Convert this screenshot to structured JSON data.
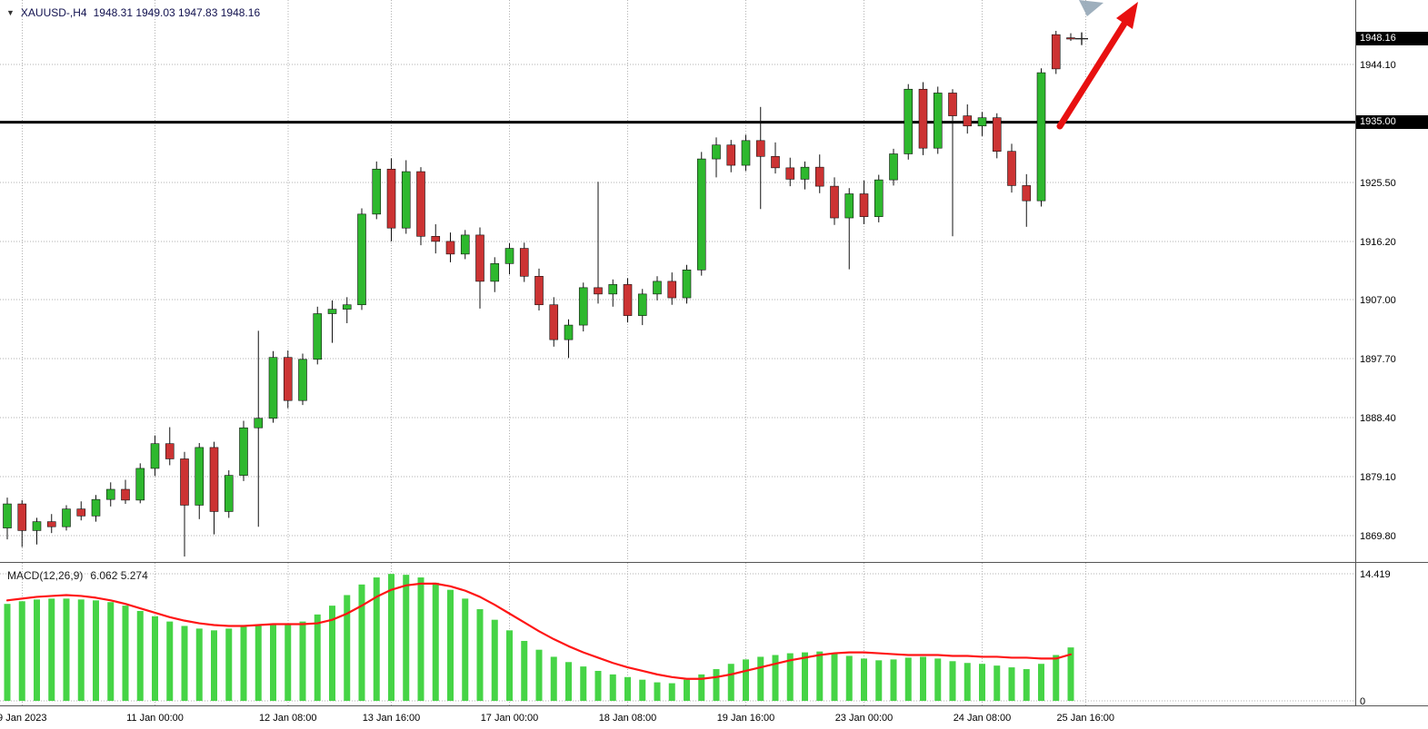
{
  "window": {
    "symbol_period": "XAUUSD-,H4",
    "ohlc_text": "1948.31 1949.03 1947.83 1948.16"
  },
  "chart_data": {
    "type": "candlestick_with_macd",
    "title": "XAUUSD-,H4",
    "symbol": "XAUUSD-",
    "timeframe": "H4",
    "current_ohlc": {
      "open": 1948.31,
      "high": 1949.03,
      "low": 1947.83,
      "close": 1948.16
    },
    "price_axis": {
      "ticks": [
        1944.1,
        1935.0,
        1925.5,
        1916.2,
        1907.0,
        1897.7,
        1888.4,
        1879.1,
        1869.8
      ],
      "callout_current": "1948.16",
      "callout_level": "1935.00"
    },
    "horizontal_line": 1935.0,
    "time_axis": {
      "labels": [
        {
          "text": "9 Jan 2023",
          "index": 2
        },
        {
          "text": "11 Jan 00:00",
          "index": 11
        },
        {
          "text": "12 Jan 08:00",
          "index": 20
        },
        {
          "text": "13 Jan 16:00",
          "index": 27
        },
        {
          "text": "17 Jan 00:00",
          "index": 35
        },
        {
          "text": "18 Jan 08:00",
          "index": 43
        },
        {
          "text": "19 Jan 16:00",
          "index": 51
        },
        {
          "text": "23 Jan 00:00",
          "index": 59
        },
        {
          "text": "24 Jan 08:00",
          "index": 67
        },
        {
          "text": "25 Jan 16:00",
          "index": 74
        }
      ]
    },
    "candles": [
      [
        1871.0,
        1875.8,
        1869.2,
        1874.8
      ],
      [
        1874.8,
        1875.4,
        1868.0,
        1870.6
      ],
      [
        1870.6,
        1872.6,
        1868.4,
        1872.0
      ],
      [
        1872.0,
        1873.2,
        1870.2,
        1871.2
      ],
      [
        1871.2,
        1874.6,
        1870.6,
        1874.0
      ],
      [
        1874.0,
        1875.2,
        1872.2,
        1872.9
      ],
      [
        1872.9,
        1876.2,
        1872.0,
        1875.5
      ],
      [
        1875.5,
        1878.2,
        1874.4,
        1877.1
      ],
      [
        1877.1,
        1878.6,
        1874.8,
        1875.4
      ],
      [
        1875.4,
        1881.2,
        1874.9,
        1880.4
      ],
      [
        1880.4,
        1885.6,
        1879.2,
        1884.3
      ],
      [
        1884.3,
        1886.9,
        1880.9,
        1881.9
      ],
      [
        1881.9,
        1883.0,
        1866.5,
        1874.6
      ],
      [
        1874.6,
        1884.4,
        1872.4,
        1883.7
      ],
      [
        1883.7,
        1884.6,
        1870.0,
        1873.6
      ],
      [
        1873.6,
        1880.1,
        1872.6,
        1879.3
      ],
      [
        1879.3,
        1887.9,
        1878.4,
        1886.8
      ],
      [
        1886.8,
        1902.1,
        1871.2,
        1888.3
      ],
      [
        1888.3,
        1898.9,
        1887.6,
        1897.9
      ],
      [
        1897.9,
        1899.0,
        1889.9,
        1891.1
      ],
      [
        1891.1,
        1898.5,
        1890.4,
        1897.6
      ],
      [
        1897.6,
        1905.9,
        1896.8,
        1904.8
      ],
      [
        1904.8,
        1906.9,
        1900.2,
        1905.5
      ],
      [
        1905.5,
        1907.4,
        1903.3,
        1906.2
      ],
      [
        1906.2,
        1921.4,
        1905.4,
        1920.5
      ],
      [
        1920.5,
        1928.8,
        1919.7,
        1927.6
      ],
      [
        1927.6,
        1929.3,
        1916.2,
        1918.3
      ],
      [
        1918.3,
        1929.0,
        1917.4,
        1927.2
      ],
      [
        1927.2,
        1927.9,
        1915.6,
        1917.0
      ],
      [
        1917.0,
        1918.9,
        1914.3,
        1916.2
      ],
      [
        1916.2,
        1917.6,
        1912.9,
        1914.2
      ],
      [
        1914.2,
        1918.0,
        1913.4,
        1917.2
      ],
      [
        1917.2,
        1918.4,
        1905.6,
        1909.9
      ],
      [
        1909.9,
        1913.7,
        1908.2,
        1912.7
      ],
      [
        1912.7,
        1915.9,
        1911.0,
        1915.1
      ],
      [
        1915.1,
        1916.0,
        1909.8,
        1910.7
      ],
      [
        1910.7,
        1911.9,
        1905.3,
        1906.2
      ],
      [
        1906.2,
        1907.4,
        1899.6,
        1900.7
      ],
      [
        1900.7,
        1903.9,
        1897.8,
        1903.0
      ],
      [
        1903.0,
        1909.7,
        1902.0,
        1908.9
      ],
      [
        1908.9,
        1925.6,
        1906.4,
        1907.9
      ],
      [
        1907.9,
        1910.2,
        1905.9,
        1909.4
      ],
      [
        1909.4,
        1910.4,
        1903.4,
        1904.5
      ],
      [
        1904.5,
        1908.7,
        1903.0,
        1907.9
      ],
      [
        1907.9,
        1910.7,
        1906.9,
        1909.9
      ],
      [
        1909.9,
        1911.3,
        1906.2,
        1907.3
      ],
      [
        1907.3,
        1912.5,
        1906.4,
        1911.7
      ],
      [
        1911.7,
        1930.3,
        1910.8,
        1929.2
      ],
      [
        1929.2,
        1932.6,
        1926.3,
        1931.4
      ],
      [
        1931.4,
        1932.2,
        1927.1,
        1928.2
      ],
      [
        1928.2,
        1933.0,
        1927.3,
        1932.1
      ],
      [
        1932.1,
        1937.4,
        1921.3,
        1929.6
      ],
      [
        1929.6,
        1931.8,
        1926.9,
        1927.8
      ],
      [
        1927.8,
        1929.4,
        1924.9,
        1926.0
      ],
      [
        1926.0,
        1928.8,
        1924.4,
        1927.9
      ],
      [
        1927.9,
        1929.9,
        1923.8,
        1924.9
      ],
      [
        1924.9,
        1926.3,
        1918.8,
        1919.9
      ],
      [
        1919.9,
        1924.6,
        1911.8,
        1923.7
      ],
      [
        1923.7,
        1925.8,
        1918.9,
        1920.1
      ],
      [
        1920.1,
        1926.7,
        1919.2,
        1925.9
      ],
      [
        1925.9,
        1930.8,
        1925.0,
        1930.0
      ],
      [
        1930.0,
        1941.0,
        1929.1,
        1940.2
      ],
      [
        1940.2,
        1941.3,
        1929.8,
        1930.9
      ],
      [
        1930.9,
        1940.6,
        1930.0,
        1939.6
      ],
      [
        1939.6,
        1940.2,
        1917.0,
        1936.0
      ],
      [
        1936.0,
        1937.8,
        1933.2,
        1934.4
      ],
      [
        1934.4,
        1936.6,
        1932.8,
        1935.7
      ],
      [
        1935.7,
        1936.4,
        1929.3,
        1930.4
      ],
      [
        1930.4,
        1931.6,
        1923.9,
        1925.0
      ],
      [
        1925.0,
        1926.8,
        1918.5,
        1922.6
      ],
      [
        1922.6,
        1943.5,
        1921.7,
        1942.8
      ],
      [
        1948.8,
        1949.4,
        1942.6,
        1943.4
      ],
      [
        1948.31,
        1949.03,
        1947.83,
        1948.16
      ]
    ],
    "macd": {
      "label": "MACD(12,26,9)",
      "values_text": "6.062 5.274",
      "macd_value": 6.062,
      "signal_value": 5.274,
      "axis_max": 14.419,
      "axis_max_label": "14.419",
      "axis_zero_label": "0",
      "histogram": [
        11.0,
        11.3,
        11.5,
        11.6,
        11.6,
        11.5,
        11.4,
        11.2,
        10.8,
        10.2,
        9.6,
        9.0,
        8.5,
        8.2,
        8.0,
        8.2,
        8.4,
        8.5,
        8.6,
        8.6,
        9.0,
        9.8,
        10.8,
        12.0,
        13.2,
        14.0,
        14.4,
        14.3,
        14.0,
        13.4,
        12.6,
        11.6,
        10.4,
        9.2,
        8.0,
        6.8,
        5.8,
        5.0,
        4.4,
        3.9,
        3.4,
        3.0,
        2.7,
        2.4,
        2.1,
        2.0,
        2.4,
        3.0,
        3.6,
        4.2,
        4.7,
        5.0,
        5.2,
        5.4,
        5.5,
        5.6,
        5.4,
        5.1,
        4.8,
        4.6,
        4.7,
        4.9,
        5.0,
        4.8,
        4.5,
        4.3,
        4.2,
        4.0,
        3.8,
        3.6,
        4.2,
        5.2,
        6.06
      ],
      "signal": [
        11.4,
        11.6,
        11.8,
        11.9,
        12.0,
        11.9,
        11.7,
        11.4,
        11.0,
        10.5,
        10.0,
        9.5,
        9.1,
        8.8,
        8.6,
        8.5,
        8.5,
        8.6,
        8.7,
        8.7,
        8.7,
        8.8,
        9.2,
        9.9,
        10.8,
        11.8,
        12.6,
        13.1,
        13.3,
        13.3,
        13.0,
        12.5,
        11.8,
        10.9,
        9.9,
        8.9,
        7.9,
        7.0,
        6.2,
        5.5,
        4.9,
        4.3,
        3.8,
        3.4,
        3.0,
        2.7,
        2.5,
        2.5,
        2.7,
        3.0,
        3.4,
        3.8,
        4.2,
        4.6,
        4.9,
        5.2,
        5.4,
        5.5,
        5.5,
        5.4,
        5.3,
        5.2,
        5.2,
        5.2,
        5.1,
        5.1,
        5.0,
        5.0,
        4.9,
        4.9,
        4.8,
        4.8,
        5.27
      ]
    },
    "annotations": {
      "trend_arrow": "thick red arrow pointing up-right above last candles",
      "plus_marker_price": 1948.16
    },
    "colors": {
      "bull": "#2eb82e",
      "bear": "#cc3333",
      "wick": "#111111",
      "macd_bar": "#46d446",
      "signal": "#ff1515",
      "grid": "#b2b2b2",
      "hline": "#000000",
      "arrow": "#e81010",
      "callout_bg": "#000000",
      "callout_text": "#ffffff",
      "cursor": "#94a6b6"
    }
  }
}
